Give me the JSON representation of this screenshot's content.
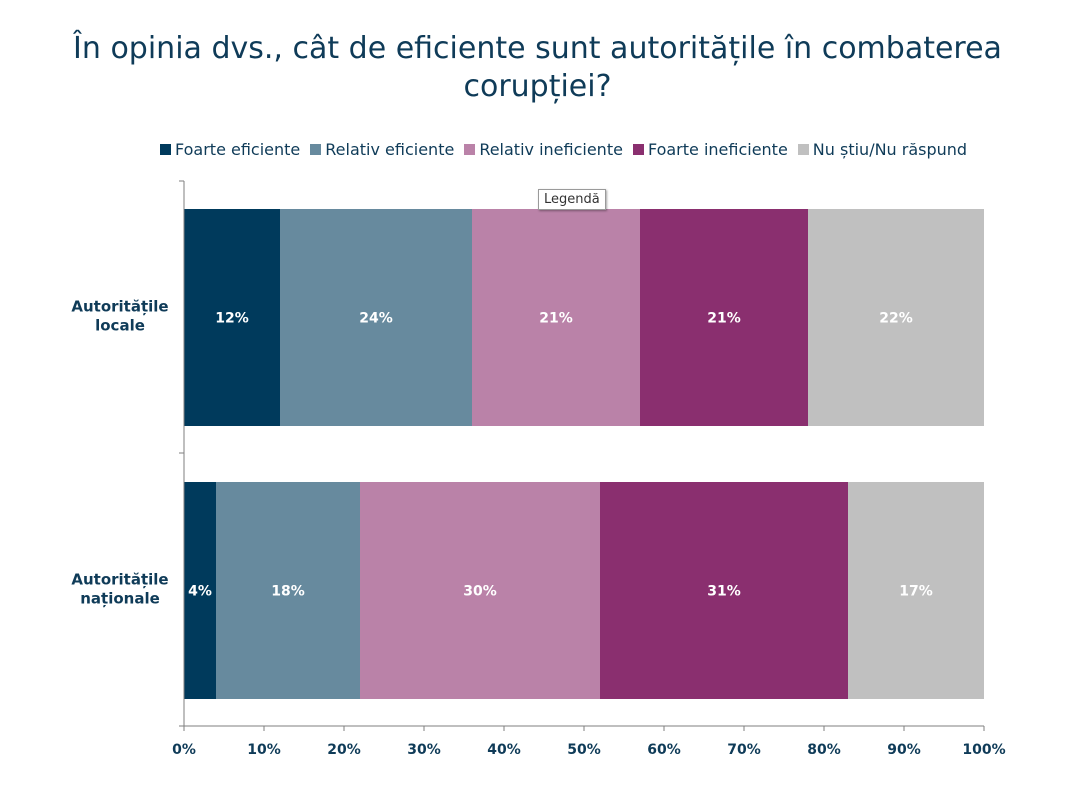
{
  "chart_data": {
    "type": "bar",
    "orientation": "horizontal",
    "stacked": true,
    "title_lines": [
      "În opinia dvs., cât de eficiente sunt autoritățile în combaterea",
      "corupției?"
    ],
    "categories": [
      "Autoritățile locale",
      "Autoritățile naționale"
    ],
    "category_label_lines": [
      [
        "Autoritățile",
        "locale"
      ],
      [
        "Autoritățile",
        "naționale"
      ]
    ],
    "series": [
      {
        "name": "Foarte eficiente",
        "color": "#003a5c",
        "values": [
          12,
          4
        ],
        "labels": [
          "12%",
          "4%"
        ]
      },
      {
        "name": "Relativ eficiente",
        "color": "#678a9e",
        "values": [
          24,
          18
        ],
        "labels": [
          "24%",
          "18%"
        ]
      },
      {
        "name": "Relativ ineficiente",
        "color": "#ba82a8",
        "values": [
          21,
          30
        ],
        "labels": [
          "21%",
          "30%"
        ]
      },
      {
        "name": "Foarte ineficiente",
        "color": "#8a2f6f",
        "values": [
          21,
          31
        ],
        "labels": [
          "21%",
          "31%"
        ]
      },
      {
        "name": "Nu știu/Nu răspund",
        "color": "#c0c0c0",
        "values": [
          22,
          17
        ],
        "labels": [
          "22%",
          "17%"
        ]
      }
    ],
    "xlim": [
      0,
      100
    ],
    "x_ticks": [
      0,
      10,
      20,
      30,
      40,
      50,
      60,
      70,
      80,
      90,
      100
    ],
    "x_tick_labels": [
      "0%",
      "10%",
      "20%",
      "30%",
      "40%",
      "50%",
      "60%",
      "70%",
      "80%",
      "90%",
      "100%"
    ],
    "legend_position": "top",
    "grid": false
  },
  "legend_tooltip": "Legendă",
  "colors": {
    "text": "#0f3b58",
    "axis": "#7f7f7f"
  }
}
